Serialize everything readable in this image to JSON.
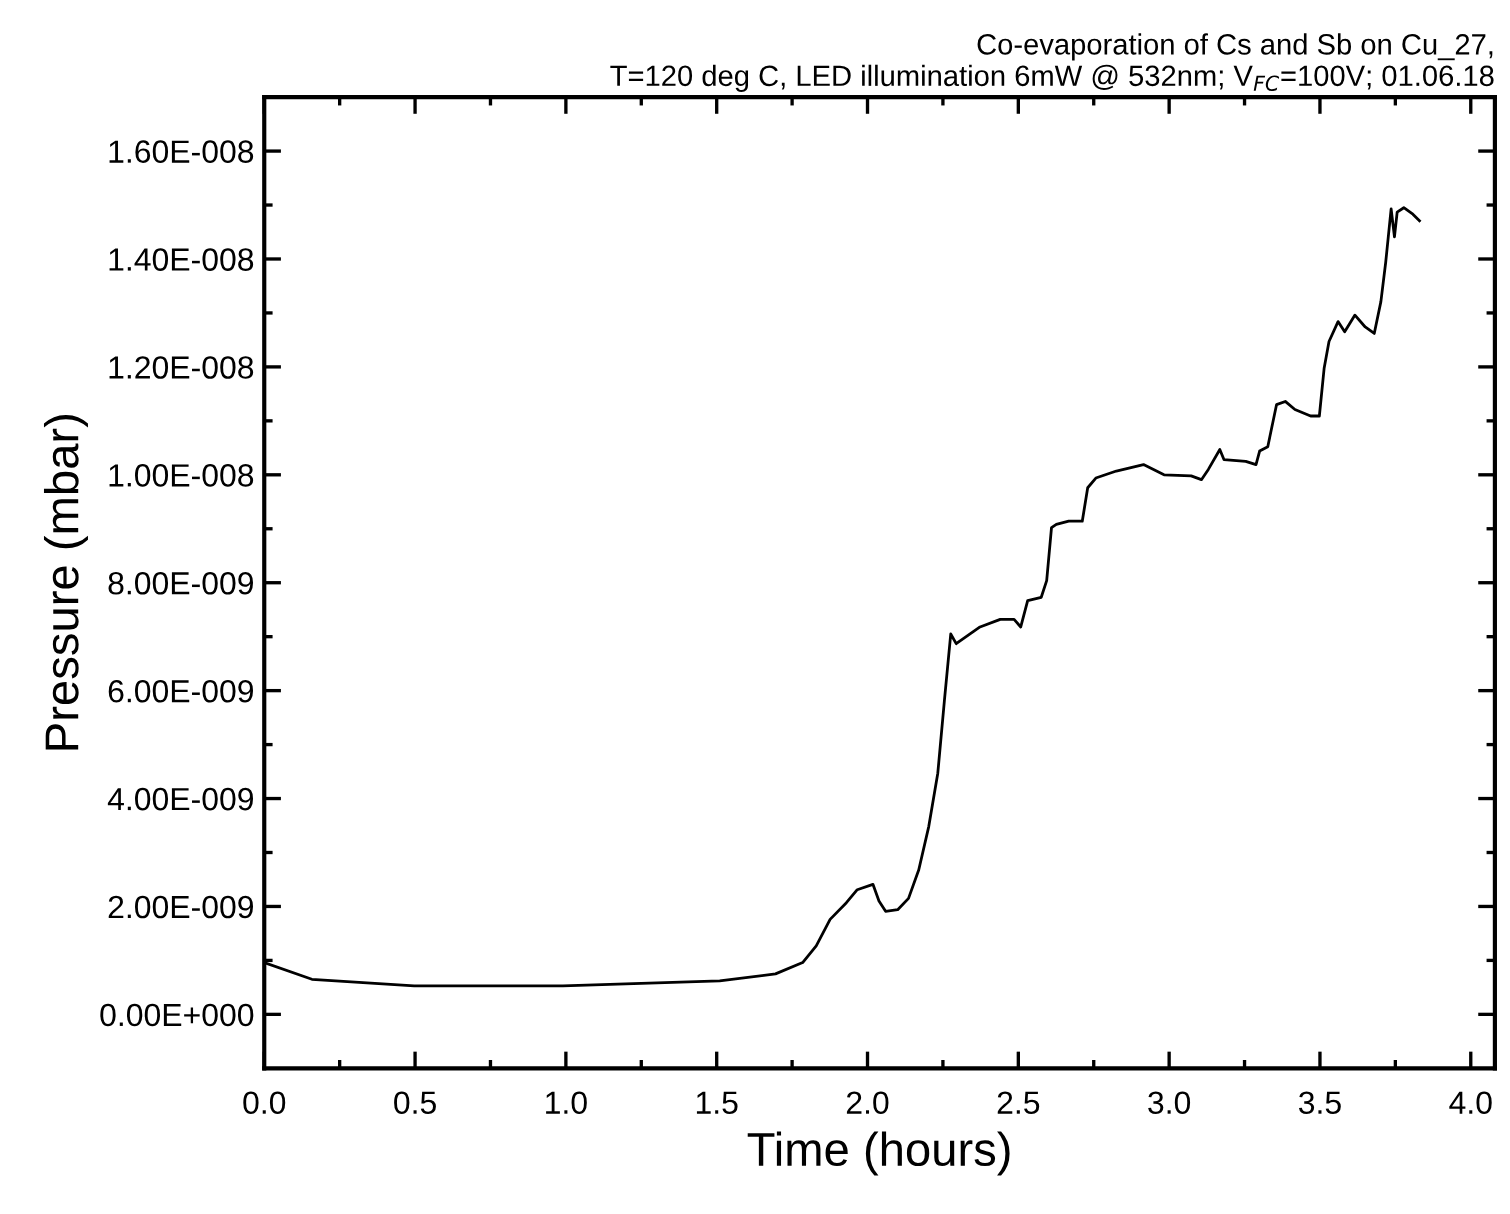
{
  "chart_data": {
    "type": "line",
    "title": "Co-evaporation of Cs and Sb on Cu_27,\nT=120 deg C, LED illumination 6mW @ 532nm; V$_{FC}$=100V; 01.06.18",
    "xlabel": "Time (hours)",
    "ylabel": "Pressure (mbar)",
    "xlim": [
      0,
      4.08
    ],
    "ylim": [
      -1e-09,
      1.7e-08
    ],
    "xticks": [
      {
        "value": 0,
        "label": "0.0"
      },
      {
        "value": 0.5,
        "label": "0.5"
      },
      {
        "value": 1,
        "label": "1.0"
      },
      {
        "value": 1.5,
        "label": "1.5"
      },
      {
        "value": 2,
        "label": "2.0"
      },
      {
        "value": 2.5,
        "label": "2.5"
      },
      {
        "value": 3,
        "label": "3.0"
      },
      {
        "value": 3.5,
        "label": "3.5"
      },
      {
        "value": 4,
        "label": "4.0"
      }
    ],
    "yticks": [
      {
        "value": 0,
        "label": "0.00E+000"
      },
      {
        "value": 2e-09,
        "label": "2.00E-009"
      },
      {
        "value": 4e-09,
        "label": "4.00E-009"
      },
      {
        "value": 6e-09,
        "label": "6.00E-009"
      },
      {
        "value": 8e-09,
        "label": "8.00E-009"
      },
      {
        "value": 1e-08,
        "label": "1.00E-008"
      },
      {
        "value": 1.2e-08,
        "label": "1.20E-008"
      },
      {
        "value": 1.4e-08,
        "label": "1.40E-008"
      },
      {
        "value": 1.6e-08,
        "label": "1.60E-008"
      }
    ],
    "grid": false,
    "legend": false,
    "marker": "none",
    "line_style": "solid",
    "series": [
      {
        "color": "#000000",
        "x": [
          0,
          0.158,
          0.497,
          0.99,
          1.51,
          1.695,
          1.785,
          1.83,
          1.876,
          1.93,
          1.966,
          2.018,
          2.038,
          2.06,
          2.1,
          2.136,
          2.17,
          2.203,
          2.233,
          2.255,
          2.276,
          2.294,
          2.373,
          2.44,
          2.486,
          2.508,
          2.531,
          2.576,
          2.594,
          2.61,
          2.626,
          2.667,
          2.712,
          2.73,
          2.757,
          2.825,
          2.915,
          2.983,
          3.073,
          3.107,
          3.13,
          3.168,
          3.182,
          3.254,
          3.288,
          3.3,
          3.327,
          3.356,
          3.385,
          3.417,
          3.469,
          3.498,
          3.514,
          3.53,
          3.56,
          3.582,
          3.616,
          3.65,
          3.68,
          3.702,
          3.718,
          3.736,
          3.747,
          3.756,
          3.778,
          3.808,
          3.83
        ],
        "values": [
          9.6e-10,
          6.5e-10,
          5.3e-10,
          5.3e-10,
          6.2e-10,
          7.5e-10,
          9.6e-10,
          1.27e-09,
          1.76e-09,
          2.07e-09,
          2.31e-09,
          2.41e-09,
          2.1e-09,
          1.91e-09,
          1.94e-09,
          2.15e-09,
          2.68e-09,
          3.48e-09,
          4.47e-09,
          5.82e-09,
          7.05e-09,
          6.87e-09,
          7.18e-09,
          7.32e-09,
          7.32e-09,
          7.18e-09,
          7.67e-09,
          7.73e-09,
          8.04e-09,
          9.02e-09,
          9.08e-09,
          9.14e-09,
          9.14e-09,
          9.76e-09,
          9.94e-09,
          1.007e-08,
          1.019e-08,
          1e-08,
          9.98e-09,
          9.91e-09,
          1.01e-08,
          1.047e-08,
          1.028e-08,
          1.025e-08,
          1.019e-08,
          1.044e-08,
          1.052e-08,
          1.13e-08,
          1.136e-08,
          1.121e-08,
          1.109e-08,
          1.109e-08,
          1.198e-08,
          1.247e-08,
          1.284e-08,
          1.265e-08,
          1.296e-08,
          1.274e-08,
          1.262e-08,
          1.321e-08,
          1.394e-08,
          1.493e-08,
          1.441e-08,
          1.487e-08,
          1.495e-08,
          1.483e-08,
          1.471e-08
        ]
      }
    ]
  }
}
